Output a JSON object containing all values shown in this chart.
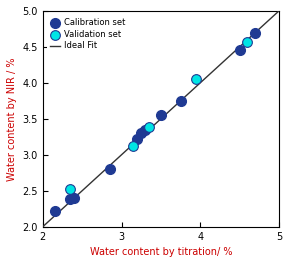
{
  "calibration_x": [
    2.15,
    2.35,
    2.4,
    2.85,
    3.2,
    3.25,
    3.3,
    3.5,
    3.75,
    4.5,
    4.7
  ],
  "calibration_y": [
    2.22,
    2.38,
    2.4,
    2.8,
    3.22,
    3.3,
    3.35,
    3.55,
    3.75,
    4.45,
    4.7
  ],
  "validation_x": [
    2.35,
    3.15,
    3.35,
    3.95,
    4.6
  ],
  "validation_y": [
    2.52,
    3.12,
    3.38,
    4.05,
    4.57
  ],
  "ideal_fit_range": [
    2.0,
    5.0
  ],
  "xlim": [
    2.0,
    5.0
  ],
  "ylim": [
    2.0,
    5.0
  ],
  "xticks": [
    2.0,
    3.0,
    4.0,
    5.0
  ],
  "yticks": [
    2.0,
    2.5,
    3.0,
    3.5,
    4.0,
    4.5,
    5.0
  ],
  "xlabel": "Water content by titration/ %",
  "ylabel": "Water content by NIR / %",
  "calib_color": "#1f3a93",
  "valid_color": "#00e5e5",
  "valid_edge_color": "#1f3a93",
  "line_color": "#333333",
  "xlabel_color": "#cc0000",
  "ylabel_color": "#cc0000",
  "marker_size": 7,
  "legend_labels": [
    "Calibration set",
    "Validation set",
    "Ideal Fit"
  ]
}
